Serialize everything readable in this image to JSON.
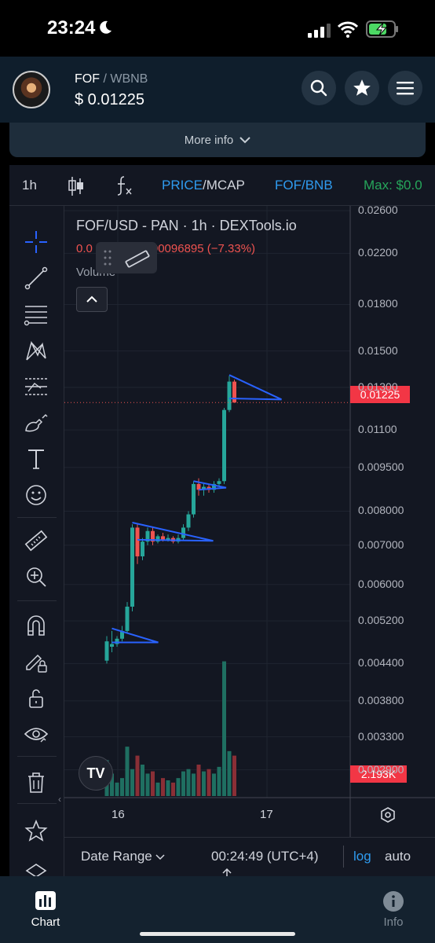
{
  "status_bar": {
    "time": "23:24"
  },
  "header": {
    "base_symbol": "FOF",
    "quote_symbol": "/ WBNB",
    "price": "$ 0.01225",
    "more_info_label": "More info"
  },
  "chart_toolbar": {
    "interval": "1h",
    "price_label": "PRICE",
    "mcap_label": "/MCAP",
    "pair_label": "FOF/BNB",
    "max_label": "Max: $0.0"
  },
  "legend": {
    "title": "FOF/USD - PAN · 1h · DEXTools.io",
    "ohlc_prefix": "0.0",
    "ohlc_change": "00096895 (−7.33%)",
    "volume_label": "Volume"
  },
  "price_axis": [
    "0.02600",
    "0.02200",
    "0.01800",
    "0.01500",
    "0.01300",
    "0.01100",
    "0.009500",
    "0.008000",
    "0.007000",
    "0.006000",
    "0.005200",
    "0.004400",
    "0.003800",
    "0.003300",
    "0.002900"
  ],
  "last_price": "0.01225",
  "last_volume": "2.193K",
  "time_axis": [
    "16",
    "17"
  ],
  "bottom_bar": {
    "date_range_label": "Date Range",
    "clock": "00:24:49 (UTC+4)",
    "log_label": "log",
    "auto_label": "auto"
  },
  "tabs": {
    "chart_label": "Chart",
    "info_label": "Info"
  },
  "colors": {
    "up": "#26a69a",
    "down": "#ef5350",
    "drawing": "#2962ff",
    "accent": "#2f9bef"
  },
  "chart_data": {
    "type": "candlestick",
    "title": "FOF/USD - PAN · 1h · DEXTools.io",
    "y_scale": "log",
    "ylim": [
      0.0026,
      0.0265
    ],
    "x_ticks": [
      "16",
      "17"
    ],
    "candles": [
      {
        "o": 0.00445,
        "h": 0.0049,
        "l": 0.0044,
        "c": 0.0048
      },
      {
        "o": 0.0047,
        "h": 0.005,
        "l": 0.0046,
        "c": 0.00475
      },
      {
        "o": 0.00475,
        "h": 0.0049,
        "l": 0.0047,
        "c": 0.00485
      },
      {
        "o": 0.00485,
        "h": 0.0051,
        "l": 0.0048,
        "c": 0.005
      },
      {
        "o": 0.005,
        "h": 0.0056,
        "l": 0.00495,
        "c": 0.0055
      },
      {
        "o": 0.0055,
        "h": 0.0076,
        "l": 0.0054,
        "c": 0.0075
      },
      {
        "o": 0.0075,
        "h": 0.0076,
        "l": 0.0065,
        "c": 0.0067
      },
      {
        "o": 0.0067,
        "h": 0.0072,
        "l": 0.0066,
        "c": 0.0071
      },
      {
        "o": 0.0071,
        "h": 0.0075,
        "l": 0.007,
        "c": 0.0074
      },
      {
        "o": 0.0074,
        "h": 0.0075,
        "l": 0.007,
        "c": 0.0071
      },
      {
        "o": 0.0071,
        "h": 0.0073,
        "l": 0.00705,
        "c": 0.00725
      },
      {
        "o": 0.00725,
        "h": 0.00735,
        "l": 0.0071,
        "c": 0.00715
      },
      {
        "o": 0.00715,
        "h": 0.0073,
        "l": 0.0071,
        "c": 0.0072
      },
      {
        "o": 0.0072,
        "h": 0.00725,
        "l": 0.00705,
        "c": 0.0071
      },
      {
        "o": 0.0071,
        "h": 0.0073,
        "l": 0.00705,
        "c": 0.0072
      },
      {
        "o": 0.0072,
        "h": 0.0076,
        "l": 0.00715,
        "c": 0.0075
      },
      {
        "o": 0.0075,
        "h": 0.008,
        "l": 0.0074,
        "c": 0.0079
      },
      {
        "o": 0.0079,
        "h": 0.009,
        "l": 0.0078,
        "c": 0.0089
      },
      {
        "o": 0.0089,
        "h": 0.0091,
        "l": 0.0085,
        "c": 0.0087
      },
      {
        "o": 0.0087,
        "h": 0.0089,
        "l": 0.0085,
        "c": 0.0088
      },
      {
        "o": 0.0088,
        "h": 0.0089,
        "l": 0.0086,
        "c": 0.0087
      },
      {
        "o": 0.0087,
        "h": 0.009,
        "l": 0.0086,
        "c": 0.0089
      },
      {
        "o": 0.0089,
        "h": 0.0091,
        "l": 0.0088,
        "c": 0.009
      },
      {
        "o": 0.009,
        "h": 0.012,
        "l": 0.0089,
        "c": 0.0119
      },
      {
        "o": 0.0119,
        "h": 0.0136,
        "l": 0.0118,
        "c": 0.0133
      },
      {
        "o": 0.0133,
        "h": 0.0134,
        "l": 0.0123,
        "c": 0.01225
      }
    ],
    "volumes": [
      0.8,
      0.5,
      0.3,
      0.4,
      1.1,
      0.6,
      0.9,
      0.7,
      0.5,
      0.55,
      0.3,
      0.4,
      0.35,
      0.3,
      0.4,
      0.55,
      0.6,
      0.5,
      0.7,
      0.55,
      0.6,
      0.5,
      0.65,
      3.0,
      1.0,
      0.9
    ],
    "volume_axis_max": 3.5
  }
}
